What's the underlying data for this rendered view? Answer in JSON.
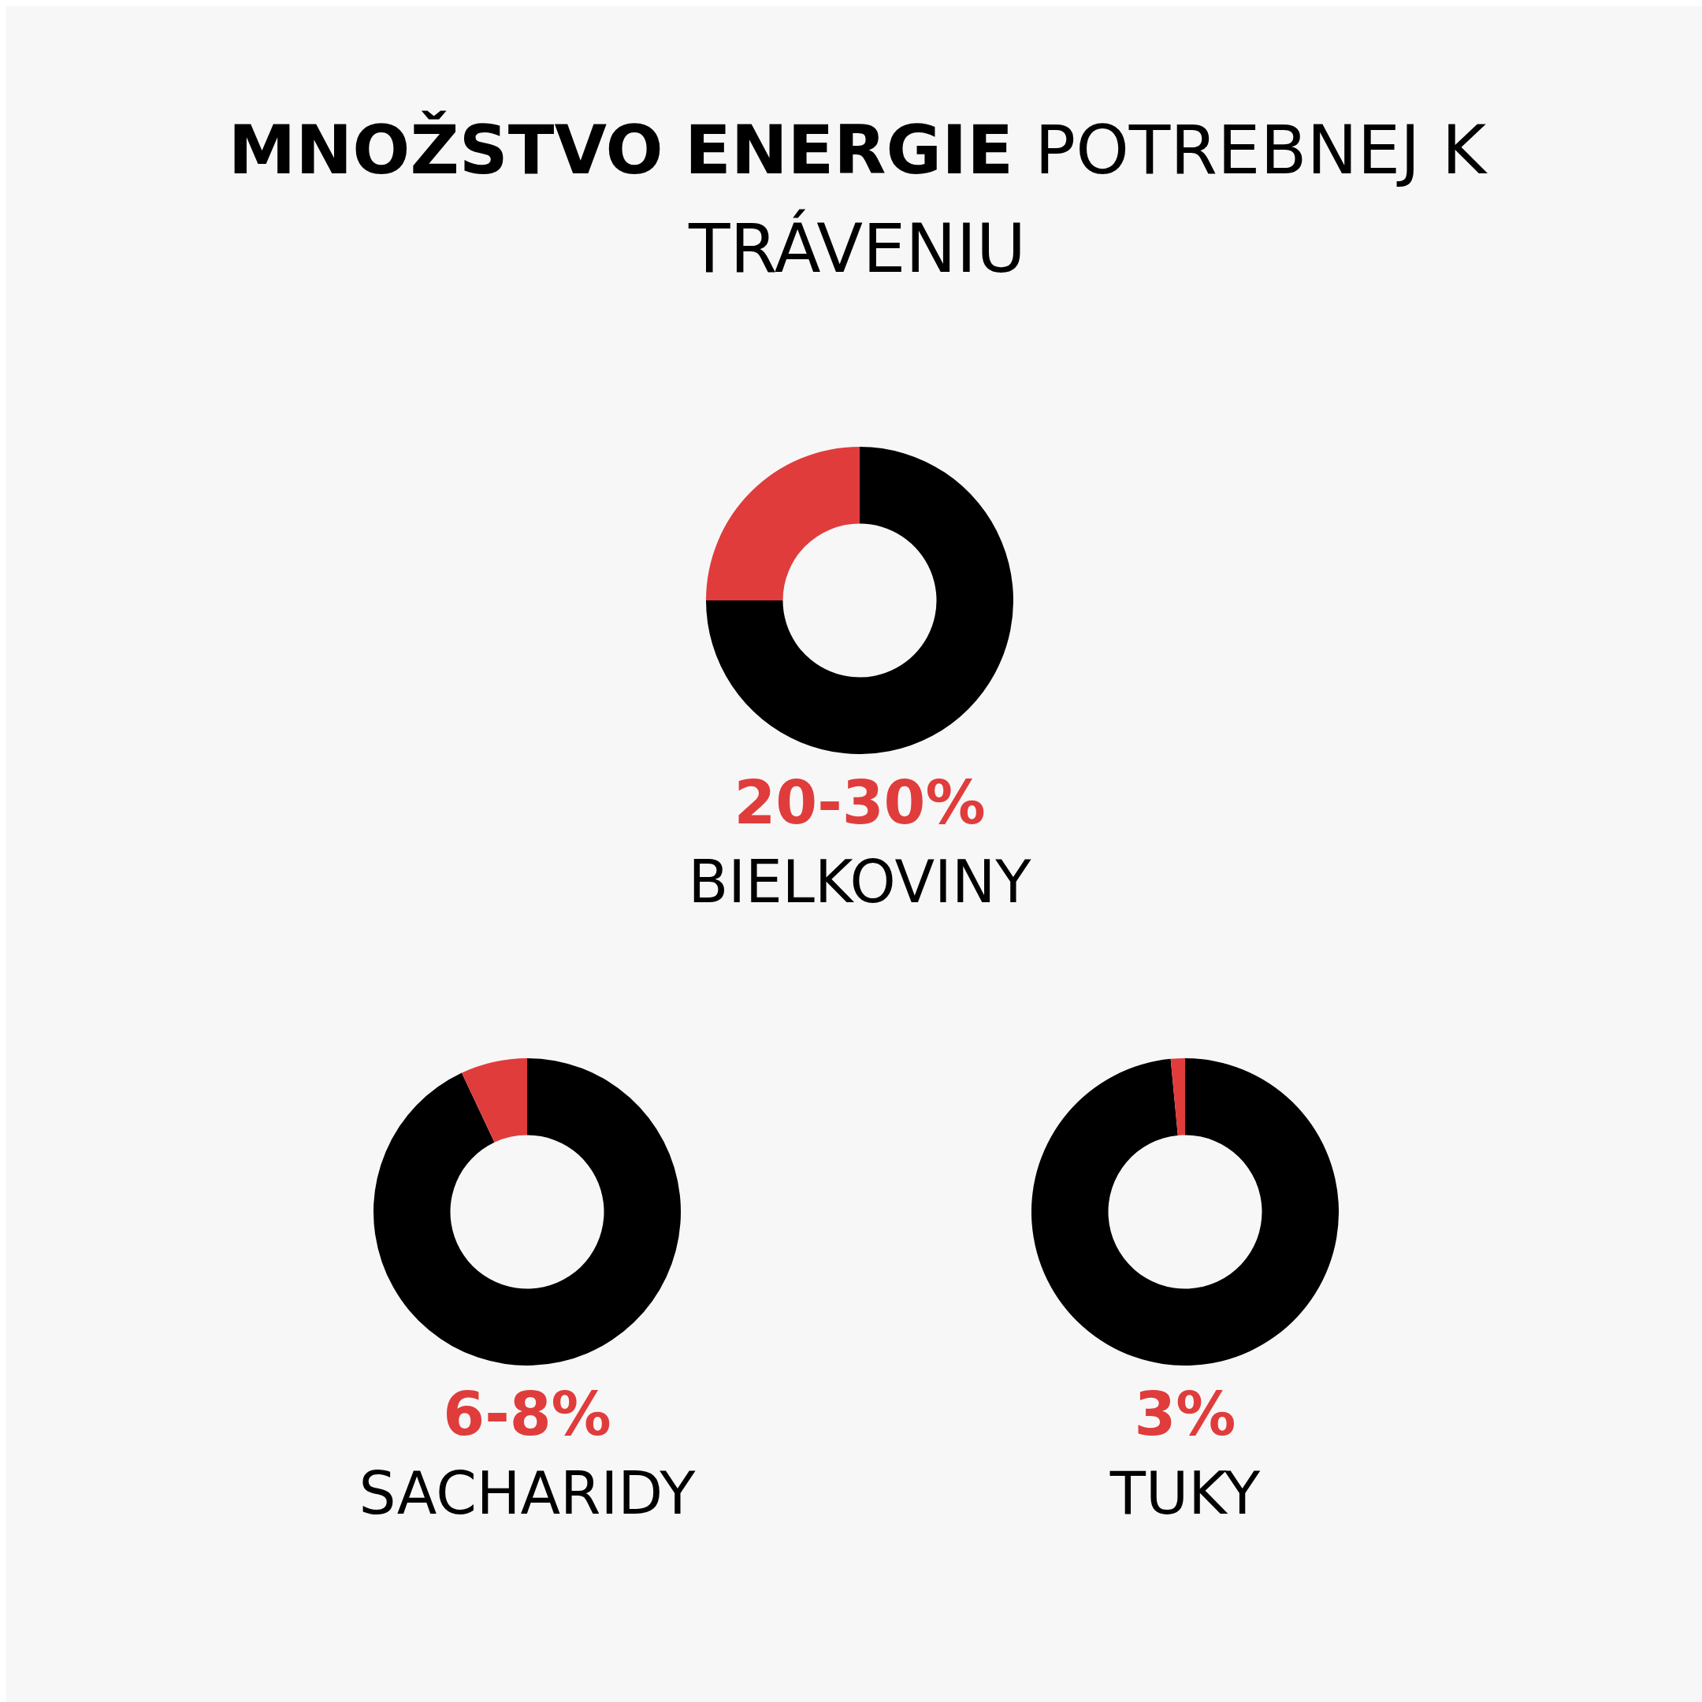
{
  "chart_data": [
    {
      "type": "other",
      "title": "MNOŽSTVO ENERGIE POTREBNEJ K TRÁVENIU"
    },
    {
      "type": "donut",
      "title": "BIELKOVINY",
      "annotations": [
        "20-30%"
      ],
      "categories": [
        null,
        null
      ],
      "values": [
        75,
        25
      ],
      "colors": [
        "#000000",
        "#e03c3c"
      ]
    },
    {
      "type": "donut",
      "title": "SACHARIDY",
      "annotations": [
        "6-8%"
      ],
      "categories": [
        null,
        null
      ],
      "values": [
        93,
        7
      ],
      "colors": [
        "#000000",
        "#e03c3c"
      ]
    },
    {
      "type": "donut",
      "title": "TUKY",
      "annotations": [
        "3%"
      ],
      "categories": [
        null,
        null
      ],
      "values": [
        98.5,
        1.5
      ],
      "colors": [
        "#000000",
        "#e03c3c"
      ]
    }
  ]
}
